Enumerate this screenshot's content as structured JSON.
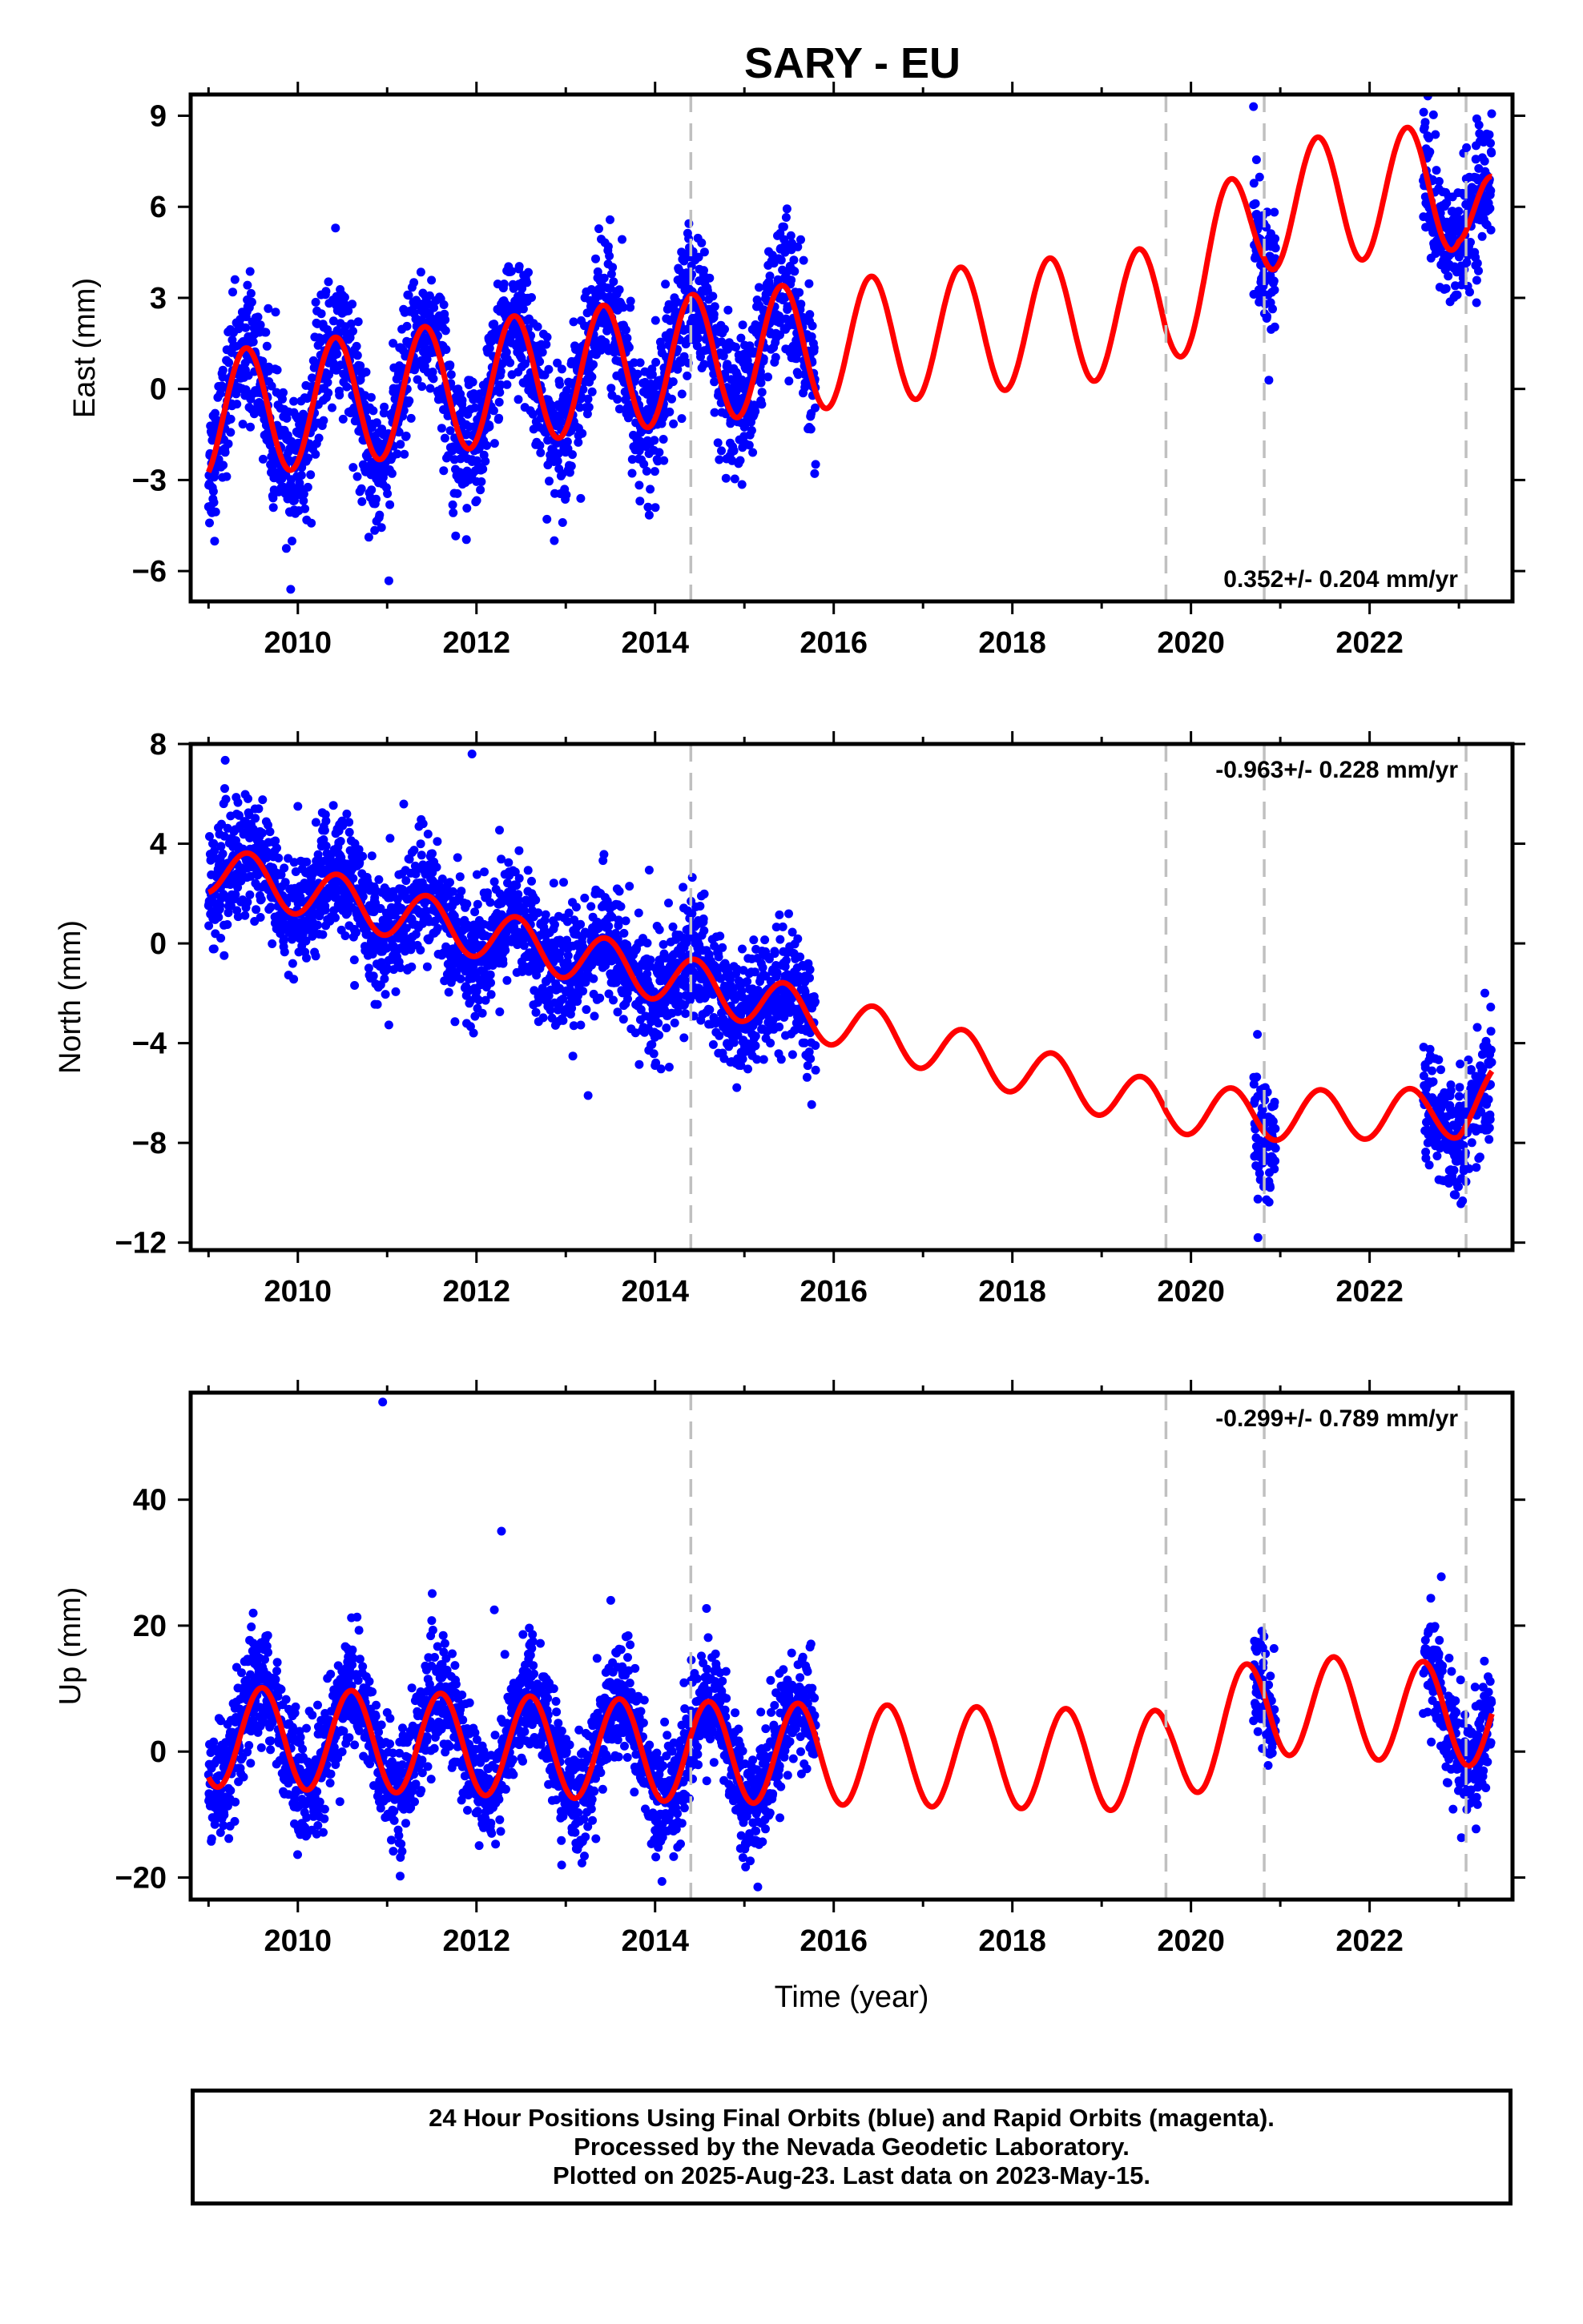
{
  "title": "SARY - EU",
  "footer": {
    "line1": "24 Hour Positions Using Final Orbits (blue) and Rapid Orbits (magenta).",
    "line2": "Processed by the Nevada Geodetic Laboratory.",
    "line3": "Plotted on 2025-Aug-23. Last data on 2023-May-15."
  },
  "colors": {
    "final_orbits": "#0000ff",
    "model": "#ff0000",
    "breaks": "#c0c0c0",
    "frame": "#000000"
  },
  "chart_data": [
    {
      "type": "scatter",
      "component": "East",
      "ylabel": "East (mm)",
      "xlabel": "",
      "xlim": [
        2008.8,
        2023.6
      ],
      "ylim": [
        -7,
        9.7
      ],
      "xticks": [
        2010,
        2012,
        2014,
        2016,
        2018,
        2020,
        2022
      ],
      "yticks": [
        -6,
        -3,
        0,
        3,
        6,
        9
      ],
      "rate_text": "0.352+/- 0.204 mm/yr",
      "rate_position": "bottom-right",
      "data_segments": [
        [
          2009.0,
          2015.8
        ],
        [
          2020.7,
          2020.95
        ],
        [
          2022.6,
          2023.37
        ]
      ],
      "model": {
        "trend": 0.352,
        "annual_amplitude": 2.1,
        "peak_phase": 0.42,
        "scatter": 1.1,
        "anchors": [
          [
            2009.0,
            -0.9
          ],
          [
            2014.4,
            1.0
          ],
          [
            2019.72,
            2.6
          ],
          [
            2020.82,
            6.0
          ],
          [
            2023.0,
            6.7
          ],
          [
            2023.37,
            5.0
          ]
        ]
      },
      "breaks": [
        2014.4,
        2019.72,
        2020.82,
        2023.08
      ],
      "outliers": [
        [
          2020.7,
          9.3
        ],
        [
          2009.92,
          -6.6
        ],
        [
          2023.2,
          8.9
        ]
      ]
    },
    {
      "type": "scatter",
      "component": "North",
      "ylabel": "North (mm)",
      "xlabel": "",
      "xlim": [
        2008.8,
        2023.6
      ],
      "ylim": [
        -12.3,
        8.0
      ],
      "xticks": [
        2010,
        2012,
        2014,
        2016,
        2018,
        2020,
        2022
      ],
      "yticks": [
        -12,
        -8,
        -4,
        0,
        4,
        8
      ],
      "rate_text": "-0.963+/- 0.228 mm/yr",
      "rate_position": "top-right",
      "data_segments": [
        [
          2009.0,
          2015.8
        ],
        [
          2020.7,
          2020.95
        ],
        [
          2022.6,
          2023.37
        ]
      ],
      "model": {
        "trend": -0.963,
        "annual_amplitude": 1.0,
        "peak_phase": 0.45,
        "scatter": 1.2,
        "anchors": [
          [
            2009.0,
            3.0
          ],
          [
            2014.4,
            -1.6
          ],
          [
            2019.72,
            -6.6
          ],
          [
            2020.82,
            -6.9
          ],
          [
            2023.0,
            -6.8
          ],
          [
            2023.37,
            -6.0
          ]
        ]
      },
      "breaks": [
        2014.4,
        2019.72,
        2020.82,
        2023.08
      ],
      "outliers": [
        [
          2011.95,
          7.6
        ],
        [
          2020.75,
          -11.8
        ],
        [
          2013.25,
          -6.1
        ]
      ]
    },
    {
      "type": "scatter",
      "component": "Up",
      "ylabel": "Up (mm)",
      "xlabel": "Time (year)",
      "xlim": [
        2008.8,
        2023.6
      ],
      "ylim": [
        -23.5,
        57
      ],
      "xticks": [
        2010,
        2012,
        2014,
        2016,
        2018,
        2020,
        2022
      ],
      "yticks": [
        -20,
        0,
        20,
        40
      ],
      "rate_text": "-0.299+/- 0.789 mm/yr",
      "rate_position": "top-right",
      "data_segments": [
        [
          2009.0,
          2015.8
        ],
        [
          2020.7,
          2020.95
        ],
        [
          2022.6,
          2023.37
        ]
      ],
      "model": {
        "trend": -0.299,
        "annual_amplitude": 8.0,
        "peak_phase": 0.6,
        "scatter": 4.5,
        "anchors": [
          [
            2009.0,
            2.4
          ],
          [
            2014.4,
            0.0
          ],
          [
            2019.72,
            -1.5
          ],
          [
            2020.82,
            7.6
          ],
          [
            2023.0,
            6.0
          ],
          [
            2023.37,
            5.0
          ]
        ]
      },
      "breaks": [
        2014.4,
        2019.72,
        2020.82,
        2023.08
      ],
      "outliers": [
        [
          2010.95,
          55.5
        ],
        [
          2012.28,
          35.0
        ],
        [
          2012.2,
          22.5
        ],
        [
          2009.5,
          22.0
        ],
        [
          2015.15,
          -21.5
        ]
      ]
    }
  ]
}
